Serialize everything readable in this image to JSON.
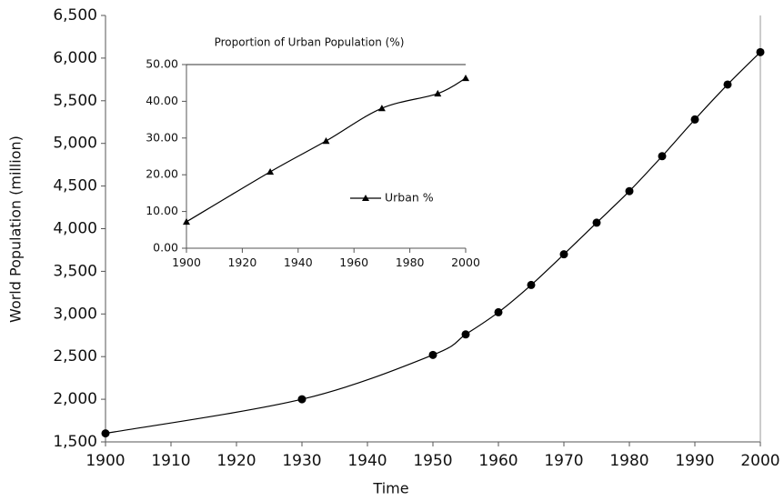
{
  "chart_data": [
    {
      "type": "line",
      "xlabel": "Time",
      "ylabel": "World Population (million)",
      "marker": "circle",
      "color": "#000000",
      "x": [
        1900,
        1930,
        1950,
        1955,
        1960,
        1965,
        1970,
        1975,
        1980,
        1985,
        1990,
        1995,
        2000
      ],
      "values": [
        1600,
        2000,
        2520,
        2760,
        3020,
        3340,
        3700,
        4070,
        4440,
        4850,
        5280,
        5690,
        6070
      ],
      "xlim": [
        1900,
        2000
      ],
      "xticks": [
        1900,
        1910,
        1920,
        1930,
        1940,
        1950,
        1960,
        1970,
        1980,
        1990,
        2000
      ],
      "ylim": [
        1500,
        6500
      ],
      "yticks": [
        {
          "value": 1500,
          "label": "1,500"
        },
        {
          "value": 2000,
          "label": "2,000"
        },
        {
          "value": 2500,
          "label": "2,500"
        },
        {
          "value": 3000,
          "label": "3,000"
        },
        {
          "value": 3500,
          "label": "3,500"
        },
        {
          "value": 4000,
          "label": "4,000"
        },
        {
          "value": 4500,
          "label": "4,500"
        },
        {
          "value": 5000,
          "label": "5,000"
        },
        {
          "value": 5500,
          "label": "5,500"
        },
        {
          "value": 6000,
          "label": "6,000"
        },
        {
          "value": 6500,
          "label": "6,500"
        }
      ]
    },
    {
      "type": "line",
      "title": "Proportion of Urban Population (%)",
      "marker": "triangle",
      "x": [
        1900,
        1930,
        1950,
        1970,
        1990,
        2000
      ],
      "series": [
        {
          "name": "Urban %",
          "color": "#000000",
          "values": [
            7.2,
            20.8,
            29.2,
            38.1,
            42.1,
            46.3
          ]
        }
      ],
      "xlim": [
        1900,
        2000
      ],
      "xticks": [
        1900,
        1920,
        1940,
        1960,
        1980,
        2000
      ],
      "ylim": [
        0,
        50
      ],
      "yticks": [
        {
          "value": 0,
          "label": "0.00"
        },
        {
          "value": 10,
          "label": "10.00"
        },
        {
          "value": 20,
          "label": "20.00"
        },
        {
          "value": 30,
          "label": "30.00"
        },
        {
          "value": 40,
          "label": "40.00"
        },
        {
          "value": 50,
          "label": "50.00"
        }
      ]
    }
  ]
}
